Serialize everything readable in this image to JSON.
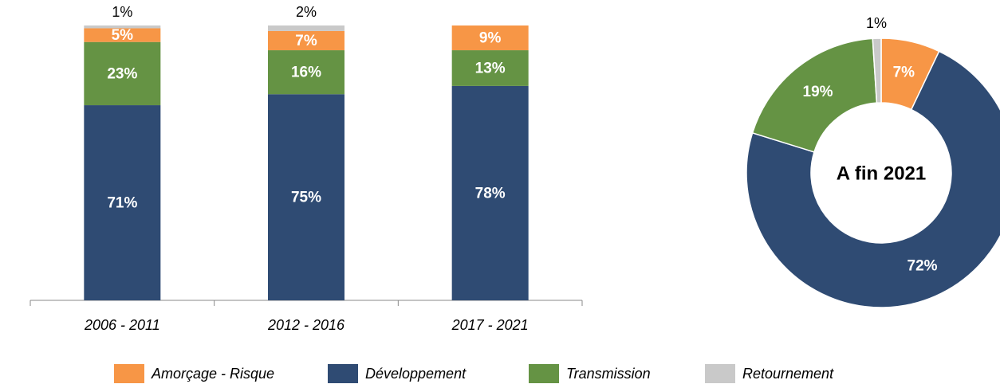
{
  "chart_data": [
    {
      "type": "stacked_bar",
      "categories": [
        "2006 - 2011",
        "2012 - 2016",
        "2017 - 2021"
      ],
      "series": [
        {
          "name": "Amorçage - Risque",
          "color": "#f79646",
          "values": [
            5,
            7,
            9
          ],
          "value_labels": [
            "5%",
            "7%",
            "9%"
          ]
        },
        {
          "name": "Développement",
          "color": "#2f4b73",
          "values": [
            71,
            75,
            78
          ],
          "value_labels": [
            "71%",
            "75%",
            "78%"
          ]
        },
        {
          "name": "Transmission",
          "color": "#659344",
          "values": [
            23,
            16,
            13
          ],
          "value_labels": [
            "23%",
            "16%",
            "13%"
          ]
        },
        {
          "name": "Retournement",
          "color": "#c9c9c9",
          "values": [
            1,
            2,
            0
          ],
          "value_labels": [
            "1%",
            "2%",
            null
          ]
        }
      ],
      "ylim": [
        0,
        100
      ]
    },
    {
      "type": "donut",
      "center_label": "A fin 2021",
      "values": [
        7,
        72,
        19,
        1
      ],
      "value_labels": [
        "7%",
        "72%",
        "19%",
        "1%"
      ],
      "colors": [
        "#f79646",
        "#2f4b73",
        "#659344",
        "#c9c9c9"
      ]
    }
  ]
}
